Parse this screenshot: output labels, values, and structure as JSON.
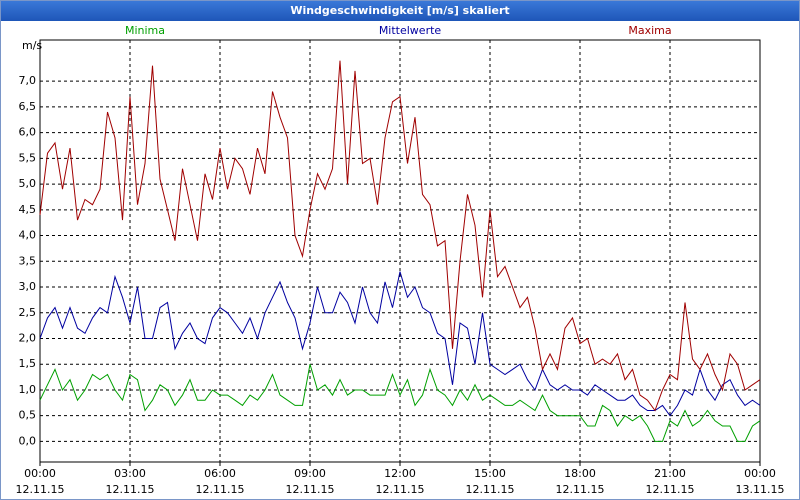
{
  "chart_data": {
    "type": "line",
    "title": "Windgeschwindigkeit [m/s] skaliert",
    "y_label": "m/s",
    "x": [
      0,
      0.25,
      0.5,
      0.75,
      1,
      1.25,
      1.5,
      1.75,
      2,
      2.25,
      2.5,
      2.75,
      3,
      3.25,
      3.5,
      3.75,
      4,
      4.25,
      4.5,
      4.75,
      5,
      5.25,
      5.5,
      5.75,
      6,
      6.25,
      6.5,
      6.75,
      7,
      7.25,
      7.5,
      7.75,
      8,
      8.25,
      8.5,
      8.75,
      9,
      9.25,
      9.5,
      9.75,
      10,
      10.25,
      10.5,
      10.75,
      11,
      11.25,
      11.5,
      11.75,
      12,
      12.25,
      12.5,
      12.75,
      13,
      13.25,
      13.5,
      13.75,
      14,
      14.25,
      14.5,
      14.75,
      15,
      15.25,
      15.5,
      15.75,
      16,
      16.25,
      16.5,
      16.75,
      17,
      17.25,
      17.5,
      17.75,
      18,
      18.25,
      18.5,
      18.75,
      19,
      19.25,
      19.5,
      19.75,
      20,
      20.25,
      20.5,
      20.75,
      21,
      21.25,
      21.5,
      21.75,
      22,
      22.25,
      22.5,
      22.75,
      23,
      23.25,
      23.5,
      23.75,
      24
    ],
    "series": [
      {
        "name": "Minima",
        "color": "#00a000",
        "values": [
          0.8,
          1.1,
          1.4,
          1.0,
          1.2,
          0.8,
          1.0,
          1.3,
          1.2,
          1.3,
          1.0,
          0.8,
          1.3,
          1.2,
          0.6,
          0.8,
          1.1,
          1.0,
          0.7,
          0.9,
          1.2,
          0.8,
          0.8,
          1.0,
          0.9,
          0.9,
          0.8,
          0.7,
          0.9,
          0.8,
          1.0,
          1.3,
          0.9,
          0.8,
          0.7,
          0.7,
          1.5,
          1.0,
          1.1,
          0.9,
          1.2,
          0.9,
          1.0,
          1.0,
          0.9,
          0.9,
          0.9,
          1.3,
          0.9,
          1.2,
          0.7,
          0.9,
          1.4,
          1.0,
          0.9,
          0.7,
          1.0,
          0.8,
          1.1,
          0.8,
          0.9,
          0.8,
          0.7,
          0.7,
          0.8,
          0.7,
          0.6,
          0.9,
          0.6,
          0.5,
          0.5,
          0.5,
          0.5,
          0.3,
          0.3,
          0.7,
          0.6,
          0.3,
          0.5,
          0.4,
          0.5,
          0.3,
          0.0,
          0.0,
          0.4,
          0.3,
          0.6,
          0.3,
          0.4,
          0.6,
          0.4,
          0.3,
          0.3,
          0.0,
          0.0,
          0.3,
          0.4
        ]
      },
      {
        "name": "Mittelwerte",
        "color": "#0000a0",
        "values": [
          2.0,
          2.4,
          2.6,
          2.2,
          2.6,
          2.2,
          2.1,
          2.4,
          2.6,
          2.5,
          3.2,
          2.8,
          2.3,
          3.0,
          2.0,
          2.0,
          2.6,
          2.7,
          1.8,
          2.1,
          2.3,
          2.0,
          1.9,
          2.4,
          2.6,
          2.5,
          2.3,
          2.1,
          2.4,
          2.0,
          2.5,
          2.8,
          3.1,
          2.7,
          2.4,
          1.8,
          2.3,
          3.0,
          2.5,
          2.5,
          2.9,
          2.7,
          2.3,
          3.0,
          2.5,
          2.3,
          3.1,
          2.6,
          3.3,
          2.8,
          3.0,
          2.6,
          2.5,
          2.1,
          2.0,
          1.1,
          2.3,
          2.2,
          1.5,
          2.5,
          1.5,
          1.4,
          1.3,
          1.4,
          1.5,
          1.2,
          1.0,
          1.4,
          1.1,
          1.0,
          1.1,
          1.0,
          1.0,
          0.9,
          1.1,
          1.0,
          0.9,
          0.8,
          0.8,
          0.9,
          0.7,
          0.6,
          0.6,
          0.7,
          0.5,
          0.7,
          1.0,
          0.9,
          1.4,
          1.0,
          0.8,
          1.1,
          1.2,
          0.9,
          0.7,
          0.8,
          0.7
        ]
      },
      {
        "name": "Maxima",
        "color": "#a00000",
        "values": [
          4.4,
          5.6,
          5.8,
          4.9,
          5.7,
          4.3,
          4.7,
          4.6,
          4.9,
          6.4,
          5.9,
          4.3,
          6.7,
          4.6,
          5.4,
          7.3,
          5.1,
          4.5,
          3.9,
          5.3,
          4.6,
          3.9,
          5.2,
          4.7,
          5.7,
          4.9,
          5.5,
          5.3,
          4.8,
          5.7,
          5.2,
          6.8,
          6.3,
          5.9,
          4.0,
          3.6,
          4.5,
          5.2,
          4.9,
          5.3,
          7.4,
          5.0,
          7.2,
          5.4,
          5.5,
          4.6,
          5.9,
          6.6,
          6.7,
          5.4,
          6.3,
          4.8,
          4.6,
          3.8,
          3.9,
          1.8,
          3.5,
          4.8,
          4.2,
          2.8,
          4.5,
          3.2,
          3.4,
          3.0,
          2.6,
          2.8,
          2.2,
          1.4,
          1.7,
          1.4,
          2.2,
          2.4,
          1.9,
          2.0,
          1.5,
          1.6,
          1.5,
          1.7,
          1.2,
          1.4,
          0.9,
          0.8,
          0.6,
          1.0,
          1.3,
          1.2,
          2.7,
          1.6,
          1.4,
          1.7,
          1.3,
          1.0,
          1.7,
          1.5,
          1.0,
          1.1,
          1.2
        ]
      }
    ],
    "xlim": [
      0,
      24
    ],
    "xticks": [
      {
        "value": 0,
        "label": "00:00"
      },
      {
        "value": 3,
        "label": "03:00"
      },
      {
        "value": 6,
        "label": "06:00"
      },
      {
        "value": 9,
        "label": "09:00"
      },
      {
        "value": 12,
        "label": "12:00"
      },
      {
        "value": 15,
        "label": "15:00"
      },
      {
        "value": 18,
        "label": "18:00"
      },
      {
        "value": 21,
        "label": "21:00"
      },
      {
        "value": 24,
        "label": "00:00"
      }
    ],
    "xtick_dates": [
      "12.11.15",
      "12.11.15",
      "12.11.15",
      "12.11.15",
      "12.11.15",
      "12.11.15",
      "12.11.15",
      "12.11.15",
      "13.11.15"
    ],
    "ylim": [
      -0.4,
      7.8
    ],
    "yticks": [
      {
        "value": 0,
        "label": "0,0"
      },
      {
        "value": 0.5,
        "label": "0,5"
      },
      {
        "value": 1,
        "label": "1,0"
      },
      {
        "value": 1.5,
        "label": "1,5"
      },
      {
        "value": 2,
        "label": "2,0"
      },
      {
        "value": 2.5,
        "label": "2,5"
      },
      {
        "value": 3,
        "label": "3,0"
      },
      {
        "value": 3.5,
        "label": "3,5"
      },
      {
        "value": 4,
        "label": "4,0"
      },
      {
        "value": 4.5,
        "label": "4,5"
      },
      {
        "value": 5,
        "label": "5,0"
      },
      {
        "value": 5.5,
        "label": "5,5"
      },
      {
        "value": 6,
        "label": "6,0"
      },
      {
        "value": 6.5,
        "label": "6,5"
      },
      {
        "value": 7,
        "label": "7,0"
      }
    ],
    "grid": true
  }
}
